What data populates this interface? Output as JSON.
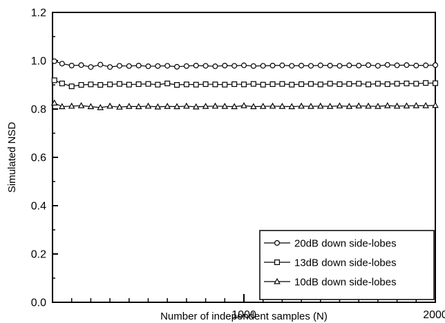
{
  "chart_data": {
    "type": "line",
    "title": "",
    "xlabel": "Number of independent samples (N)",
    "ylabel": "Simulated NSD",
    "xlim": [
      0,
      2000
    ],
    "ylim": [
      0.0,
      1.2
    ],
    "x_ticks": [
      1000,
      2000
    ],
    "x_minor_step": 100,
    "y_ticks": [
      0.0,
      0.2,
      0.4,
      0.6,
      0.8,
      1.0,
      1.2
    ],
    "y_tick_labels": [
      "0.0",
      "0.2",
      "0.4",
      "0.6",
      "0.8",
      "1.0",
      "1.2"
    ],
    "grid": false,
    "legend_position": "bottom-right",
    "x": [
      10,
      50,
      100,
      150,
      200,
      250,
      300,
      350,
      400,
      450,
      500,
      550,
      600,
      650,
      700,
      750,
      800,
      850,
      900,
      950,
      1000,
      1050,
      1100,
      1150,
      1200,
      1250,
      1300,
      1350,
      1400,
      1450,
      1500,
      1550,
      1600,
      1650,
      1700,
      1750,
      1800,
      1850,
      1900,
      1950,
      2000
    ],
    "series": [
      {
        "name": "20dB down side-lobes",
        "marker": "circle",
        "values": [
          0.998,
          0.988,
          0.98,
          0.982,
          0.974,
          0.984,
          0.974,
          0.979,
          0.978,
          0.98,
          0.977,
          0.978,
          0.979,
          0.975,
          0.978,
          0.98,
          0.979,
          0.977,
          0.98,
          0.979,
          0.981,
          0.978,
          0.979,
          0.98,
          0.981,
          0.979,
          0.98,
          0.979,
          0.981,
          0.98,
          0.979,
          0.981,
          0.98,
          0.982,
          0.979,
          0.983,
          0.981,
          0.982,
          0.98,
          0.981,
          0.982
        ]
      },
      {
        "name": "13dB down side-lobes",
        "marker": "square",
        "values": [
          0.919,
          0.906,
          0.894,
          0.9,
          0.902,
          0.9,
          0.902,
          0.904,
          0.901,
          0.903,
          0.904,
          0.901,
          0.906,
          0.9,
          0.902,
          0.901,
          0.903,
          0.902,
          0.901,
          0.903,
          0.902,
          0.904,
          0.901,
          0.903,
          0.904,
          0.901,
          0.903,
          0.904,
          0.902,
          0.905,
          0.903,
          0.904,
          0.905,
          0.902,
          0.905,
          0.903,
          0.905,
          0.906,
          0.905,
          0.908,
          0.907
        ]
      },
      {
        "name": "10dB down side-lobes",
        "marker": "triangle",
        "values": [
          0.825,
          0.81,
          0.812,
          0.814,
          0.81,
          0.806,
          0.812,
          0.808,
          0.811,
          0.81,
          0.812,
          0.809,
          0.811,
          0.81,
          0.812,
          0.809,
          0.811,
          0.812,
          0.811,
          0.81,
          0.814,
          0.81,
          0.811,
          0.812,
          0.811,
          0.81,
          0.812,
          0.811,
          0.812,
          0.811,
          0.813,
          0.811,
          0.813,
          0.812,
          0.811,
          0.814,
          0.812,
          0.813,
          0.814,
          0.814,
          0.815
        ]
      }
    ]
  }
}
